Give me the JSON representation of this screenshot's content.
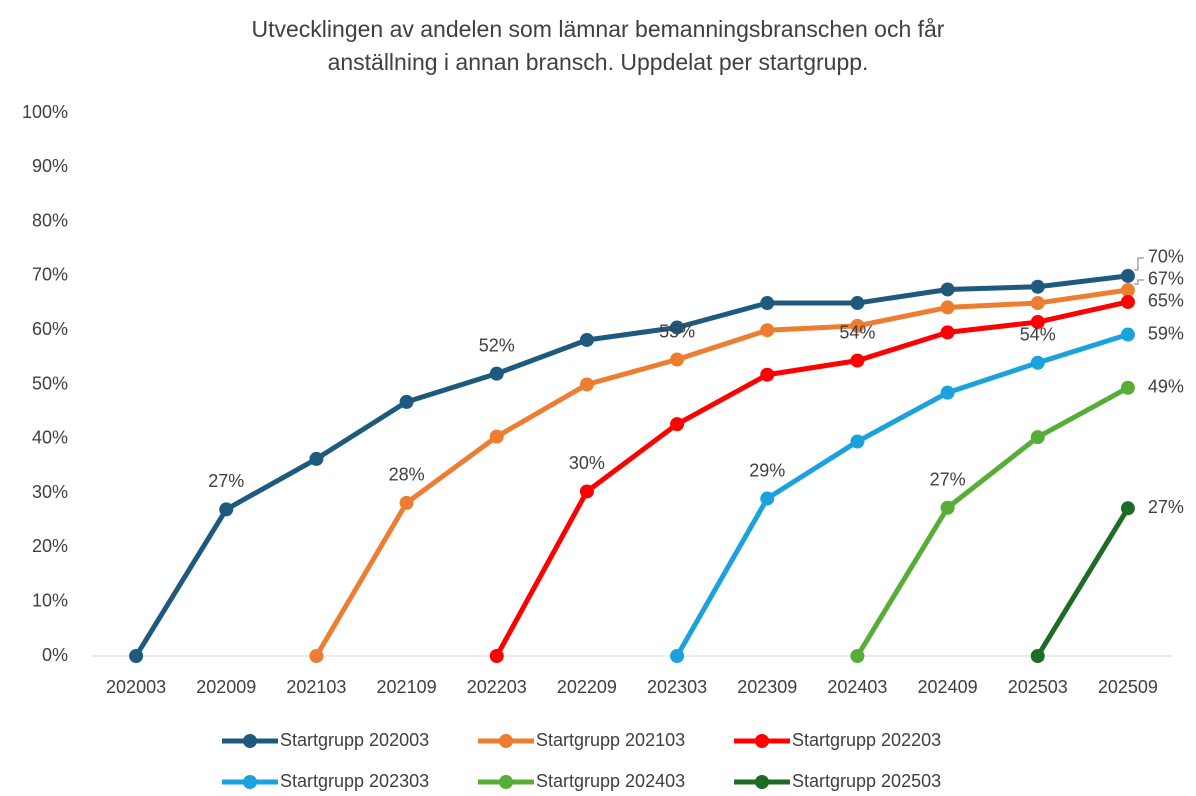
{
  "chart_data": {
    "type": "line",
    "title": [
      "Utvecklingen av andelen som lämnar bemanningsbranschen och får",
      "anställning i annan bransch. Uppdelat per startgrupp."
    ],
    "categories": [
      "202003",
      "202009",
      "202103",
      "202109",
      "202203",
      "202209",
      "202303",
      "202309",
      "202403",
      "202409",
      "202503",
      "202509"
    ],
    "ylim": [
      0,
      100
    ],
    "yticks": [
      {
        "value": 0,
        "label": "0%"
      },
      {
        "value": 10,
        "label": "10%"
      },
      {
        "value": 20,
        "label": "20%"
      },
      {
        "value": 30,
        "label": "30%"
      },
      {
        "value": 40,
        "label": "40%"
      },
      {
        "value": 50,
        "label": "50%"
      },
      {
        "value": 60,
        "label": "60%"
      },
      {
        "value": 70,
        "label": "70%"
      },
      {
        "value": 80,
        "label": "80%"
      },
      {
        "value": 90,
        "label": "90%"
      },
      {
        "value": 100,
        "label": "100%"
      }
    ],
    "grid": false,
    "legend": "bottom",
    "series": [
      {
        "name": "Startgrupp 202003",
        "color": "#1f5a7e",
        "values": [
          0,
          27,
          36.3,
          46.8,
          52,
          58.2,
          60.5,
          65,
          65,
          67.5,
          68,
          70
        ],
        "value_labels": [
          null,
          "27%",
          null,
          null,
          "52%",
          null,
          null,
          null,
          null,
          null,
          null,
          "70%"
        ]
      },
      {
        "name": "Startgrupp 202103",
        "color": "#ed7d31",
        "values": [
          null,
          null,
          0,
          28.2,
          40.4,
          50,
          54.6,
          60,
          60.8,
          64.2,
          65,
          67.4
        ],
        "value_labels": [
          null,
          null,
          null,
          "28%",
          null,
          null,
          "55%",
          null,
          null,
          null,
          null,
          "67%"
        ]
      },
      {
        "name": "Startgrupp 202203",
        "color": "#ff0000",
        "values": [
          null,
          null,
          null,
          null,
          0,
          30.3,
          42.7,
          51.8,
          54.4,
          59.6,
          61.5,
          65.2
        ],
        "value_labels": [
          null,
          null,
          null,
          null,
          null,
          "30%",
          null,
          null,
          "54%",
          null,
          null,
          "65%"
        ]
      },
      {
        "name": "Startgrupp 202303",
        "color": "#1ba1dd",
        "values": [
          null,
          null,
          null,
          null,
          null,
          null,
          0,
          29,
          39.5,
          48.5,
          54,
          59.2
        ],
        "value_labels": [
          null,
          null,
          null,
          null,
          null,
          null,
          null,
          "29%",
          null,
          null,
          "54%",
          "59%"
        ]
      },
      {
        "name": "Startgrupp 202403",
        "color": "#56ad38",
        "values": [
          null,
          null,
          null,
          null,
          null,
          null,
          null,
          null,
          0,
          27.3,
          40.3,
          49.4
        ],
        "value_labels": [
          null,
          null,
          null,
          null,
          null,
          null,
          null,
          null,
          null,
          "27%",
          null,
          "49%"
        ]
      },
      {
        "name": "Startgrupp 202503",
        "color": "#1d6b25",
        "values": [
          null,
          null,
          null,
          null,
          null,
          null,
          null,
          null,
          null,
          null,
          0,
          27.2
        ],
        "value_labels": [
          null,
          null,
          null,
          null,
          null,
          null,
          null,
          null,
          null,
          null,
          null,
          "27%"
        ]
      }
    ]
  }
}
